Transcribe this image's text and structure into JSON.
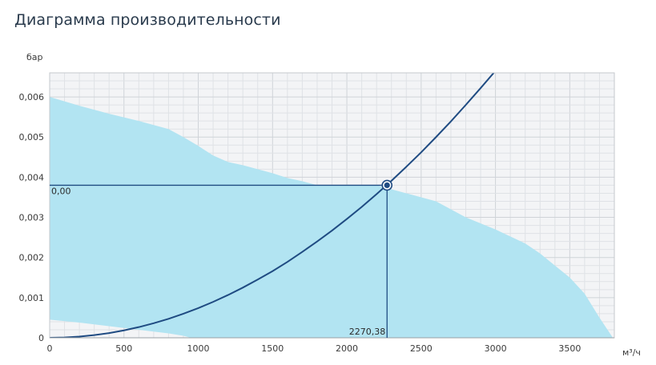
{
  "title": "Диаграмма производительности",
  "chart_data": {
    "type": "line",
    "title": "Диаграмма производительности",
    "xlabel": "м³/ч",
    "ylabel": "бар",
    "xlim": [
      0,
      3800
    ],
    "ylim": [
      0,
      0.0066
    ],
    "x_ticks": [
      0,
      500,
      1000,
      1500,
      2000,
      2500,
      3000,
      3500
    ],
    "x_tick_labels": [
      "0",
      "500",
      "1000",
      "1500",
      "2000",
      "2500",
      "3000",
      "3500"
    ],
    "y_ticks": [
      0,
      0.001,
      0.002,
      0.003,
      0.004,
      0.005,
      0.006
    ],
    "y_tick_labels": [
      "0",
      "0,001",
      "0,002",
      "0,003",
      "0,004",
      "0,005",
      "0,006"
    ],
    "grid": true,
    "series": [
      {
        "type": "area",
        "color": "#b2e4f2",
        "upper": {
          "x": [
            0,
            200,
            400,
            600,
            800,
            900,
            1000,
            1100,
            1200,
            1300,
            1400,
            1500,
            1600,
            1700,
            1800,
            2000,
            2200,
            2400,
            2600,
            2800,
            3000,
            3200,
            3300,
            3400,
            3500,
            3600,
            3700,
            3790
          ],
          "y": [
            0.006,
            0.00578,
            0.00558,
            0.0054,
            0.0052,
            0.005,
            0.00478,
            0.00454,
            0.00438,
            0.0043,
            0.0042,
            0.0041,
            0.00398,
            0.0039,
            0.0038,
            0.0038,
            0.0038,
            0.0036,
            0.0034,
            0.003,
            0.0027,
            0.00235,
            0.0021,
            0.0018,
            0.0015,
            0.0011,
            0.0005,
            0.0
          ]
        },
        "lower": {
          "x": [
            0,
            200,
            400,
            600,
            800,
            900,
            950
          ],
          "y": [
            0.00045,
            0.00038,
            0.00029,
            0.0002,
            0.00011,
            5e-05,
            0.0
          ]
        }
      },
      {
        "type": "line",
        "color": "#1f4b82",
        "x": [
          0,
          100,
          200,
          300,
          400,
          500,
          600,
          700,
          800,
          900,
          1000,
          1100,
          1200,
          1300,
          1400,
          1500,
          1600,
          1700,
          1800,
          1900,
          2000,
          2100,
          2200,
          2300,
          2400,
          2500,
          2600,
          2700,
          2800,
          2900,
          3000
        ],
        "y": [
          0,
          7e-06,
          3e-05,
          6.7e-05,
          0.000118,
          0.000185,
          0.000266,
          0.000362,
          0.000473,
          0.000599,
          0.000739,
          0.000895,
          0.001065,
          0.00125,
          0.00145,
          0.00166,
          0.00189,
          0.00214,
          0.0024,
          0.00267,
          0.00296,
          0.00326,
          0.00358,
          0.00391,
          0.00426,
          0.00462,
          0.005,
          0.00539,
          0.0058,
          0.00622,
          0.00665
        ]
      }
    ],
    "operating_point": {
      "x": 2270.38,
      "y": 0.0038,
      "x_label": "2270,38",
      "y_label": "0,00",
      "color": "#1f4b82"
    }
  }
}
